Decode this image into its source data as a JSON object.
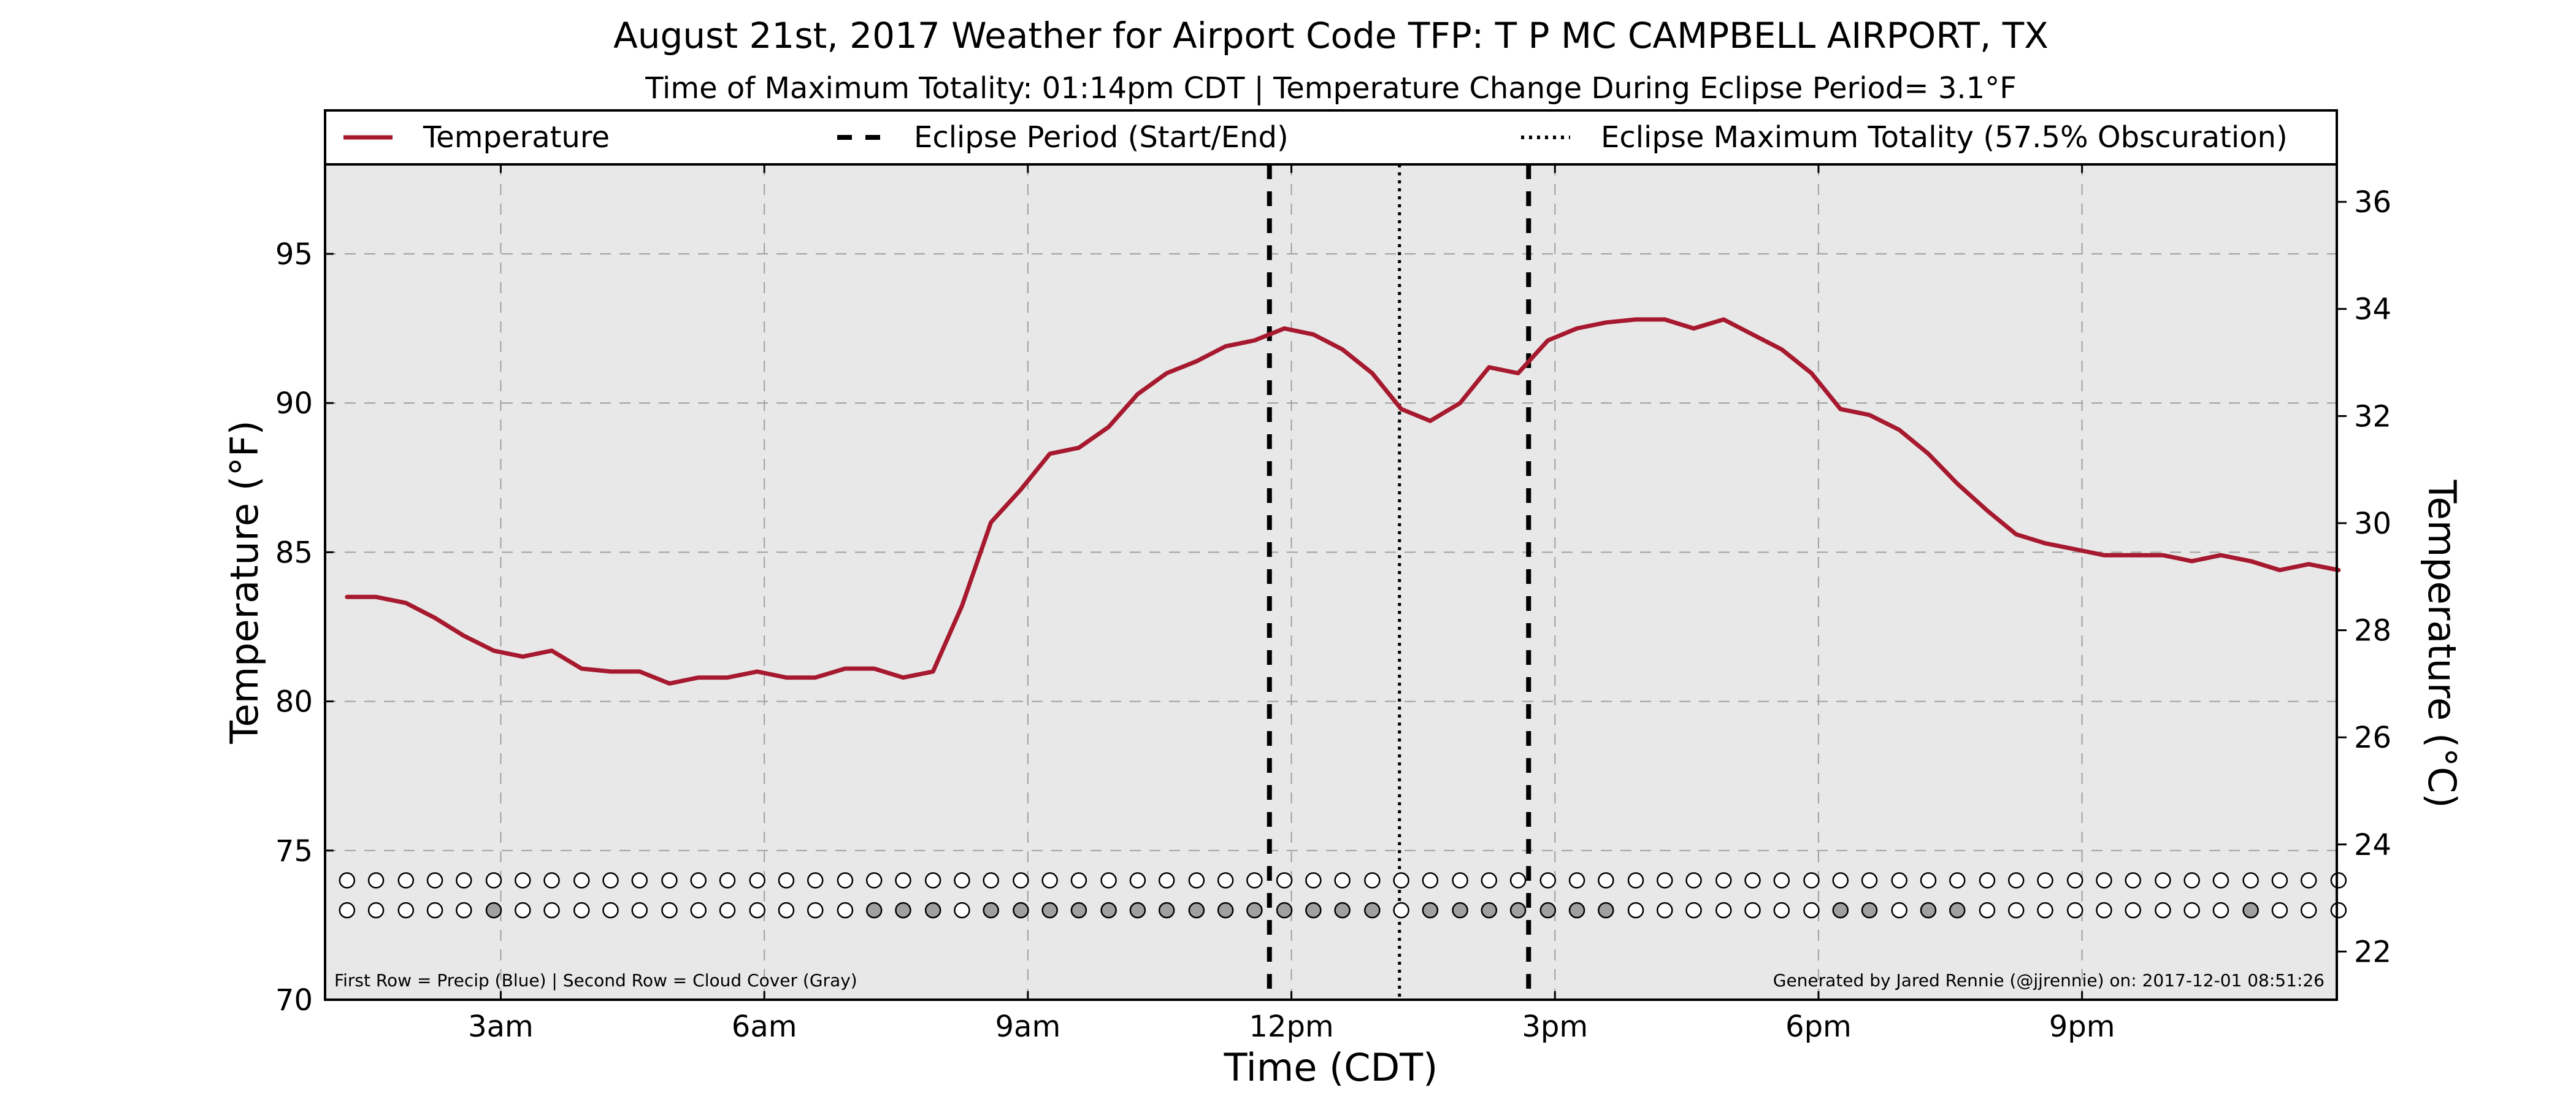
{
  "chart_data": {
    "type": "line",
    "title": "August 21st, 2017 Weather for Airport Code TFP: T P MC CAMPBELL AIRPORT, TX",
    "subtitle": "Time of Maximum Totality: 01:14pm CDT | Temperature Change During Eclipse Period= 3.1°F",
    "xlabel": "Time (CDT)",
    "ylabel": "Temperature (°F)",
    "ylabel_right": "Temperature (°C)",
    "xlim": [
      1.0,
      23.9
    ],
    "ylim": [
      70,
      98
    ],
    "ylim_right": [
      21.1,
      36.7
    ],
    "x_ticks": [
      3,
      6,
      9,
      12,
      15,
      18,
      21
    ],
    "x_tick_labels": [
      "3am",
      "6am",
      "9am",
      "12pm",
      "3pm",
      "6pm",
      "9pm"
    ],
    "y_ticks": [
      70,
      75,
      80,
      85,
      90,
      95
    ],
    "y_tick_labels": [
      "70",
      "75",
      "80",
      "85",
      "90",
      "95"
    ],
    "y_right_ticks": [
      22,
      24,
      26,
      28,
      30,
      32,
      34,
      36
    ],
    "y_right_tick_labels": [
      "22",
      "24",
      "26",
      "28",
      "30",
      "32",
      "34",
      "36"
    ],
    "grid": true,
    "legend_position": "top",
    "legend": [
      {
        "label": "Temperature",
        "style": "solid"
      },
      {
        "label": "Eclipse Period (Start/End)",
        "style": "dashed"
      },
      {
        "label": "Eclipse Maximum Totality (57.5% Obscuration)",
        "style": "dotted"
      }
    ],
    "series": [
      {
        "name": "Temperature",
        "color": "#a6192e",
        "x": [
          1.25,
          1.58,
          1.92,
          2.25,
          2.58,
          2.92,
          3.25,
          3.58,
          3.92,
          4.25,
          4.58,
          4.92,
          5.25,
          5.58,
          5.92,
          6.25,
          6.58,
          6.92,
          7.25,
          7.58,
          7.92,
          8.25,
          8.58,
          8.92,
          9.25,
          9.58,
          9.92,
          10.25,
          10.58,
          10.92,
          11.25,
          11.58,
          11.92,
          12.25,
          12.58,
          12.92,
          13.25,
          13.58,
          13.92,
          14.25,
          14.58,
          14.92,
          15.25,
          15.58,
          15.92,
          16.25,
          16.58,
          16.92,
          17.25,
          17.58,
          17.92,
          18.25,
          18.58,
          18.92,
          19.25,
          19.58,
          19.92,
          20.25,
          20.58,
          20.92,
          21.25,
          21.58,
          21.92,
          22.25,
          22.58,
          22.92,
          23.25,
          23.58,
          23.92
        ],
        "values": [
          83.5,
          83.5,
          83.3,
          82.8,
          82.2,
          81.7,
          81.5,
          81.7,
          81.1,
          81.0,
          81.0,
          80.6,
          80.8,
          80.8,
          81.0,
          80.8,
          80.8,
          81.1,
          81.1,
          80.8,
          81.0,
          83.2,
          86.0,
          87.1,
          88.3,
          88.5,
          89.2,
          90.3,
          91.0,
          91.4,
          91.9,
          92.1,
          92.5,
          92.3,
          91.8,
          91.0,
          89.8,
          89.4,
          90.0,
          91.2,
          91.0,
          92.1,
          92.5,
          92.7,
          92.8,
          92.8,
          92.5,
          92.8,
          92.3,
          91.8,
          91.0,
          89.8,
          89.6,
          89.1,
          88.3,
          87.3,
          86.4,
          85.6,
          85.3,
          85.1,
          84.9,
          84.9,
          84.9,
          84.7,
          84.9,
          84.7,
          84.4,
          84.6,
          84.4
        ]
      }
    ],
    "eclipse_start": 11.75,
    "eclipse_end": 14.7,
    "eclipse_max": 13.23,
    "precip_row_y": 74,
    "cloud_row_y": 73,
    "marker_x": [
      1.25,
      1.58,
      1.92,
      2.25,
      2.58,
      2.92,
      3.25,
      3.58,
      3.92,
      4.25,
      4.58,
      4.92,
      5.25,
      5.58,
      5.92,
      6.25,
      6.58,
      6.92,
      7.25,
      7.58,
      7.92,
      8.25,
      8.58,
      8.92,
      9.25,
      9.58,
      9.92,
      10.25,
      10.58,
      10.92,
      11.25,
      11.58,
      11.92,
      12.25,
      12.58,
      12.92,
      13.25,
      13.58,
      13.92,
      14.25,
      14.58,
      14.92,
      15.25,
      15.58,
      15.92,
      16.25,
      16.58,
      16.92,
      17.25,
      17.58,
      17.92,
      18.25,
      18.58,
      18.92,
      19.25,
      19.58,
      19.92,
      20.25,
      20.58,
      20.92,
      21.25,
      21.58,
      21.92,
      22.25,
      22.58,
      22.92,
      23.25,
      23.58,
      23.92
    ],
    "precip": [
      0,
      0,
      0,
      0,
      0,
      0,
      0,
      0,
      0,
      0,
      0,
      0,
      0,
      0,
      0,
      0,
      0,
      0,
      0,
      0,
      0,
      0,
      0,
      0,
      0,
      0,
      0,
      0,
      0,
      0,
      0,
      0,
      0,
      0,
      0,
      0,
      0,
      0,
      0,
      0,
      0,
      0,
      0,
      0,
      0,
      0,
      0,
      0,
      0,
      0,
      0,
      0,
      0,
      0,
      0,
      0,
      0,
      0,
      0,
      0,
      0,
      0,
      0,
      0,
      0,
      0,
      0,
      0,
      0
    ],
    "cloud": [
      0,
      0,
      0,
      0,
      0,
      1,
      0,
      0,
      0,
      0,
      0,
      0,
      0,
      0,
      0,
      0,
      0,
      0,
      1,
      1,
      1,
      0,
      1,
      1,
      1,
      1,
      1,
      1,
      1,
      1,
      1,
      1,
      1,
      1,
      1,
      1,
      0,
      1,
      1,
      1,
      1,
      1,
      1,
      1,
      0,
      0,
      0,
      0,
      0,
      0,
      0,
      1,
      1,
      0,
      1,
      1,
      0,
      0,
      0,
      0,
      0,
      0,
      0,
      0,
      0,
      1,
      0,
      0,
      0
    ],
    "footnote_left": "First Row = Precip (Blue) | Second Row = Cloud Cover (Gray)",
    "footnote_right": "Generated by Jared Rennie (@jjrennie) on: 2017-12-01 08:51:26",
    "colors": {
      "temperature": "#a6192e",
      "plot_background": "#e8e8e8",
      "grid": "#a0a0a0",
      "cloud_fill": "#a0a0a0",
      "marker_empty": "#ffffff"
    }
  }
}
